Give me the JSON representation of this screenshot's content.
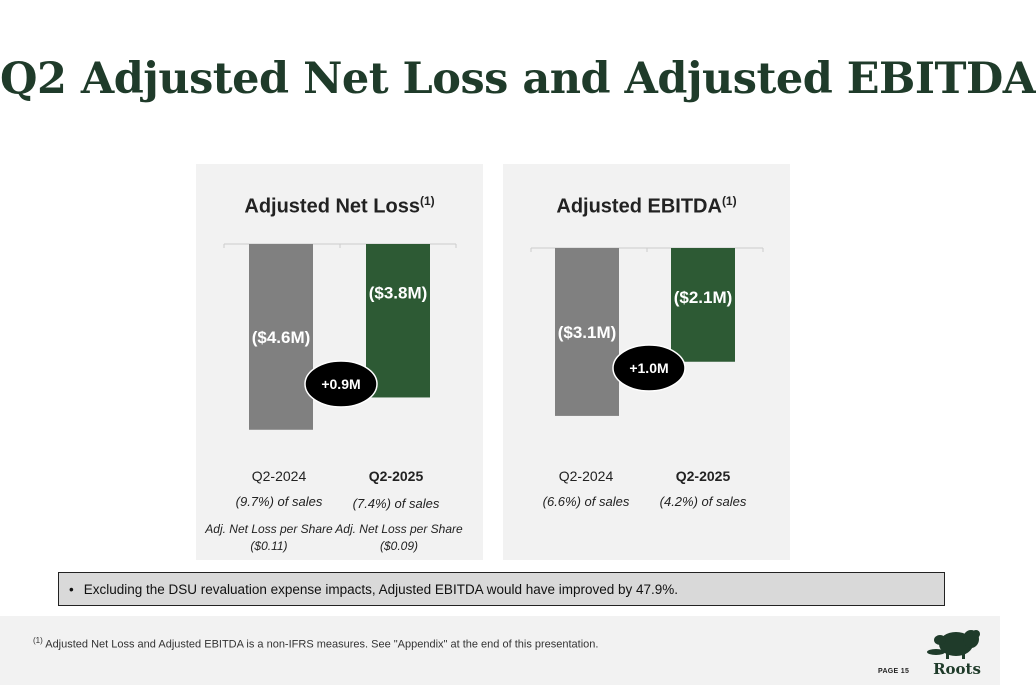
{
  "page": {
    "title": "Q2 Adjusted Net Loss and Adjusted EBITDA"
  },
  "chart_data": [
    {
      "type": "bar",
      "title": "Adjusted Net Loss",
      "title_sup": "(1)",
      "categories": [
        "Q2-2024",
        "Q2-2025"
      ],
      "values": [
        -4.6,
        -3.8
      ],
      "value_labels": [
        "($4.6M)",
        "($3.8M)"
      ],
      "unit": "$M",
      "colors": [
        "#808080",
        "#2d5a34"
      ],
      "delta_label": "+0.9M",
      "pct_of_sales": [
        "(9.7%) of sales",
        "(7.4%) of sales"
      ],
      "eps_lines": [
        [
          "Adj. Net Loss per Share",
          "($0.11)"
        ],
        [
          "Adj. Net Loss per Share",
          "($0.09)"
        ]
      ],
      "ylim": [
        -5.2,
        0
      ],
      "grid": false
    },
    {
      "type": "bar",
      "title": "Adjusted EBITDA",
      "title_sup": "(1)",
      "categories": [
        "Q2-2024",
        "Q2-2025"
      ],
      "values": [
        -3.1,
        -2.1
      ],
      "value_labels": [
        "($3.1M)",
        "($2.1M)"
      ],
      "unit": "$M",
      "colors": [
        "#808080",
        "#2d5a34"
      ],
      "delta_label": "+1.0M",
      "pct_of_sales": [
        "(6.6%) of sales",
        "(4.2%) of sales"
      ],
      "ylim": [
        -3.6,
        0
      ],
      "grid": false
    }
  ],
  "note": {
    "bullet": "•",
    "text": "Excluding the DSU revaluation expense impacts, Adjusted EBITDA would have improved by 47.9%."
  },
  "footer": {
    "footnote_sup": "(1)",
    "footnote_text": " Adjusted Net Loss and Adjusted EBITDA is a non-IFRS measures. See \"Appendix\" at the end of this presentation.",
    "page_label": "PAGE 15",
    "logo_text": "Roots",
    "brand_color": "#1f3b2a"
  }
}
